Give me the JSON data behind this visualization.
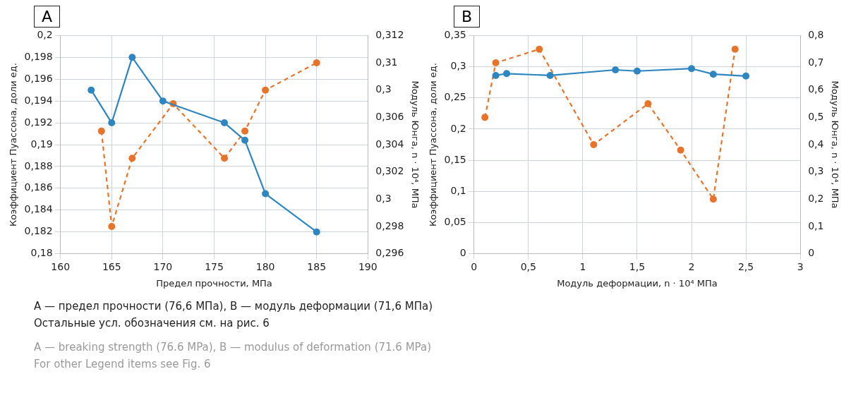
{
  "chart_data": [
    {
      "type": "line",
      "title": "A",
      "xlabel": "Предел прочности, МПа",
      "ylabel": "Коэффициент Пуассона, доли ед.",
      "y2label": "Модуль Юнга, n · 10⁴, МПа",
      "xlim": [
        160,
        190
      ],
      "xticks": [
        160,
        165,
        170,
        175,
        180,
        185,
        190
      ],
      "ylim": [
        0.18,
        0.2
      ],
      "yticks": [
        {
          "value": 0.18,
          "label": "0,18"
        },
        {
          "value": 0.182,
          "label": "0,182"
        },
        {
          "value": 0.184,
          "label": "0,184"
        },
        {
          "value": 0.186,
          "label": "0,186"
        },
        {
          "value": 0.188,
          "label": "0,188"
        },
        {
          "value": 0.19,
          "label": "0,19"
        },
        {
          "value": 0.192,
          "label": "0,192"
        },
        {
          "value": 0.194,
          "label": "0,194"
        },
        {
          "value": 0.196,
          "label": "0,196"
        },
        {
          "value": 0.198,
          "label": "0,198"
        },
        {
          "value": 0.2,
          "label": "0,2"
        }
      ],
      "y2lim": [
        0.296,
        0.312
      ],
      "y2ticks": [
        {
          "value": 0.296,
          "label": "0,296"
        },
        {
          "value": 0.298,
          "label": "0,298"
        },
        {
          "value": 0.3,
          "label": "0,3"
        },
        {
          "value": 0.302,
          "label": "0,302"
        },
        {
          "value": 0.304,
          "label": "0,304"
        },
        {
          "value": 0.306,
          "label": "0,306"
        },
        {
          "value": 0.308,
          "label": "0,3"
        },
        {
          "value": 0.31,
          "label": "0,31"
        },
        {
          "value": 0.312,
          "label": "0,312"
        }
      ],
      "grid": true,
      "legend": false,
      "marker": "circle",
      "series": [
        {
          "color": "#2e86c1",
          "line_style": "solid",
          "x": [
            163,
            165,
            167,
            170,
            176,
            178,
            180,
            185
          ],
          "values": [
            0.195,
            0.192,
            0.198,
            0.194,
            0.192,
            0.1904,
            0.1855,
            0.182
          ]
        },
        {
          "color": "#e8732a",
          "line_style": "dashed",
          "axis": "y2",
          "x": [
            164,
            165,
            167,
            171,
            176,
            178,
            180,
            185
          ],
          "values": [
            0.305,
            0.298,
            0.303,
            0.307,
            0.303,
            0.305,
            0.308,
            0.31
          ]
        }
      ]
    },
    {
      "type": "line",
      "title": "B",
      "xlabel": "Модуль деформации, n · 10⁴ МПа",
      "ylabel": "Коэффициент Пуассона, доли ед.",
      "y2label": "Модуль Юнга, n · 10⁴, МПа",
      "xlim": [
        0,
        3
      ],
      "xticks": [
        0,
        {
          "value": 0.5,
          "label": "0,5"
        },
        1,
        {
          "value": 1.5,
          "label": "1,5"
        },
        2,
        {
          "value": 2.5,
          "label": "2,5"
        },
        3
      ],
      "ylim": [
        0,
        0.35
      ],
      "yticks": [
        0,
        {
          "value": 0.05,
          "label": "0,05"
        },
        {
          "value": 0.1,
          "label": "0,1"
        },
        {
          "value": 0.15,
          "label": "0,15"
        },
        {
          "value": 0.2,
          "label": "0,2"
        },
        {
          "value": 0.25,
          "label": "0,25"
        },
        {
          "value": 0.3,
          "label": "0,3"
        },
        {
          "value": 0.35,
          "label": "0,35"
        }
      ],
      "y2lim": [
        0,
        0.8
      ],
      "y2ticks": [
        0,
        {
          "value": 0.1,
          "label": "0,1"
        },
        {
          "value": 0.2,
          "label": "0,2"
        },
        {
          "value": 0.3,
          "label": "0,3"
        },
        {
          "value": 0.4,
          "label": "0,4"
        },
        {
          "value": 0.5,
          "label": "0,5"
        },
        {
          "value": 0.6,
          "label": "0,6"
        },
        {
          "value": 0.7,
          "label": "0,7"
        },
        {
          "value": 0.8,
          "label": "0,8"
        }
      ],
      "grid": true,
      "legend": false,
      "marker": "circle",
      "series": [
        {
          "color": "#2e86c1",
          "line_style": "solid",
          "x": [
            0.2,
            0.3,
            0.7,
            1.3,
            1.5,
            2.0,
            2.2,
            2.5
          ],
          "values": [
            0.286,
            0.289,
            0.286,
            0.295,
            0.293,
            0.297,
            0.288,
            0.285
          ]
        },
        {
          "color": "#e8732a",
          "line_style": "dashed",
          "axis": "y2",
          "x": [
            0.1,
            0.2,
            0.6,
            1.1,
            1.6,
            1.9,
            2.2,
            2.4
          ],
          "values": [
            0.5,
            0.7,
            0.75,
            0.4,
            0.55,
            0.38,
            0.2,
            0.75
          ]
        }
      ],
      "annotations": [
        "А — предел прочности (76,6 МПа), В — модуль деформации (71,6 МПа)",
        "Остальные усл. обозначения см. на рис. 6",
        "A — breaking strength (76.6 MPa), B — modulus of deformation (71.6 MPa)",
        "For other Legend items see Fig. 6"
      ]
    }
  ]
}
